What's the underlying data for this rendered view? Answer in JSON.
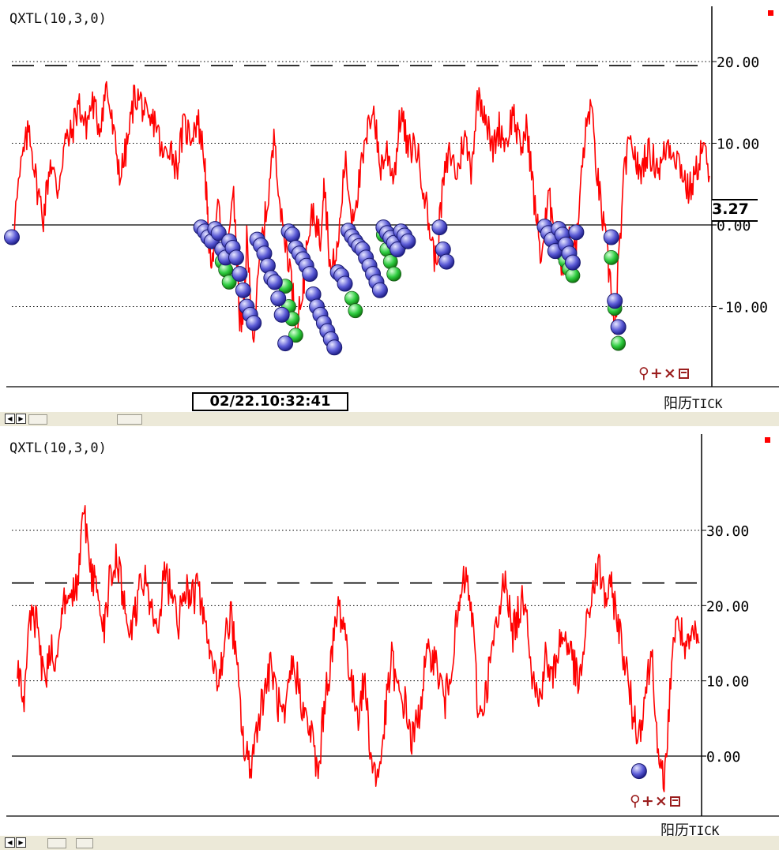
{
  "colors": {
    "line": "#ff0000",
    "signal_blue": "#5b5bd6",
    "signal_green": "#2ecc40",
    "axis": "#000000",
    "tools": "#9b1e1e"
  },
  "panes": [
    {
      "indicator_title": "QXTL(10,3,0)",
      "current_value": "3.27",
      "timestamp": "02/22.10:32:41",
      "calendar_label": "阳历",
      "period_label": "TICK",
      "tools": {
        "zoom": "zoom-icon",
        "add": "+",
        "close": "×",
        "window": "window-icon"
      }
    },
    {
      "indicator_title": "QXTL(10,3,0)",
      "calendar_label": "阳历",
      "period_label": "TICK",
      "tools": {
        "zoom": "zoom-icon",
        "add": "+",
        "close": "×",
        "window": "window-icon"
      }
    }
  ],
  "chart_data": [
    {
      "type": "line",
      "ylim": [
        -17,
        26
      ],
      "yticks": [
        "20.00",
        "10.00",
        "0.00",
        "-10.00"
      ],
      "ytick_values": [
        20,
        10,
        0,
        -10
      ],
      "grid": true,
      "dashed_level": 19.5,
      "zero_level": 0,
      "current_value": 3.27,
      "anchors": [
        [
          0,
          -1.5
        ],
        [
          3,
          8
        ],
        [
          5,
          12
        ],
        [
          7,
          5
        ],
        [
          9,
          1
        ],
        [
          11,
          8
        ],
        [
          13,
          4
        ],
        [
          15,
          10
        ],
        [
          17,
          11
        ],
        [
          19,
          15
        ],
        [
          21,
          12
        ],
        [
          23,
          15
        ],
        [
          25,
          12
        ],
        [
          27,
          17
        ],
        [
          29,
          11
        ],
        [
          31,
          6
        ],
        [
          33,
          10
        ],
        [
          35,
          16
        ],
        [
          37,
          15
        ],
        [
          39,
          12
        ],
        [
          41,
          13
        ],
        [
          43,
          8
        ],
        [
          45,
          10
        ],
        [
          47,
          7
        ],
        [
          49,
          12
        ],
        [
          51,
          11
        ],
        [
          53,
          13
        ],
        [
          55,
          8
        ],
        [
          56,
          -1
        ],
        [
          57,
          -4
        ],
        [
          59,
          2
        ],
        [
          61,
          -6
        ],
        [
          63,
          5
        ],
        [
          65,
          -11
        ],
        [
          66,
          -12
        ],
        [
          67,
          -2
        ],
        [
          69,
          -14
        ],
        [
          71,
          -3
        ],
        [
          73,
          3
        ],
        [
          75,
          11
        ],
        [
          77,
          0
        ],
        [
          79,
          -4
        ],
        [
          81,
          -12
        ],
        [
          83,
          -8
        ],
        [
          84,
          -4
        ],
        [
          86,
          2
        ],
        [
          88,
          -2
        ],
        [
          89,
          6
        ],
        [
          91,
          -6
        ],
        [
          93,
          -3
        ],
        [
          95,
          8
        ],
        [
          97,
          1
        ],
        [
          99,
          5
        ],
        [
          101,
          10
        ],
        [
          103,
          15
        ],
        [
          105,
          7
        ],
        [
          107,
          9
        ],
        [
          109,
          6
        ],
        [
          111,
          14
        ],
        [
          113,
          9
        ],
        [
          115,
          10
        ],
        [
          117,
          6
        ],
        [
          119,
          0
        ],
        [
          121,
          -5
        ],
        [
          123,
          5
        ],
        [
          125,
          9
        ],
        [
          127,
          6
        ],
        [
          129,
          11
        ],
        [
          131,
          7
        ],
        [
          133,
          16
        ],
        [
          135,
          14
        ],
        [
          137,
          9
        ],
        [
          139,
          12
        ],
        [
          141,
          10
        ],
        [
          143,
          14
        ],
        [
          145,
          9
        ],
        [
          147,
          12
        ],
        [
          149,
          3
        ],
        [
          151,
          -4
        ],
        [
          153,
          3
        ],
        [
          155,
          1
        ],
        [
          157,
          -5
        ],
        [
          159,
          -2
        ],
        [
          161,
          -3
        ],
        [
          163,
          9
        ],
        [
          165,
          15
        ],
        [
          167,
          6
        ],
        [
          169,
          -1
        ],
        [
          171,
          -8
        ],
        [
          172,
          -14
        ],
        [
          173,
          -5
        ],
        [
          175,
          8
        ],
        [
          177,
          10
        ],
        [
          179,
          6
        ],
        [
          181,
          9
        ],
        [
          183,
          8
        ],
        [
          185,
          7
        ],
        [
          187,
          10
        ],
        [
          189,
          9
        ],
        [
          191,
          7
        ],
        [
          193,
          4
        ],
        [
          195,
          6
        ],
        [
          197,
          10
        ],
        [
          199,
          6
        ]
      ],
      "signals_blue": [
        [
          0,
          -1.5
        ],
        [
          54,
          -0.3
        ],
        [
          55,
          -0.8
        ],
        [
          56,
          -1.5
        ],
        [
          57,
          -2
        ],
        [
          58,
          -0.5
        ],
        [
          59,
          -1
        ],
        [
          60,
          -3
        ],
        [
          61,
          -4
        ],
        [
          62,
          -2
        ],
        [
          63,
          -2.8
        ],
        [
          64,
          -4
        ],
        [
          65,
          -6
        ],
        [
          66,
          -8
        ],
        [
          67,
          -10
        ],
        [
          68,
          -11
        ],
        [
          69,
          -12
        ],
        [
          70,
          -1.8
        ],
        [
          71,
          -2.5
        ],
        [
          72,
          -3.5
        ],
        [
          73,
          -5
        ],
        [
          74,
          -6.5
        ],
        [
          75,
          -7
        ],
        [
          76,
          -9
        ],
        [
          77,
          -11
        ],
        [
          78,
          -14.5
        ],
        [
          79,
          -0.8
        ],
        [
          80,
          -1.2
        ],
        [
          81,
          -2.8
        ],
        [
          82,
          -3.5
        ],
        [
          83,
          -4.2
        ],
        [
          84,
          -5
        ],
        [
          85,
          -6
        ],
        [
          86,
          -8.5
        ],
        [
          87,
          -10
        ],
        [
          88,
          -11
        ],
        [
          89,
          -12
        ],
        [
          90,
          -13
        ],
        [
          91,
          -14
        ],
        [
          92,
          -15
        ],
        [
          93,
          -5.8
        ],
        [
          94,
          -6.2
        ],
        [
          95,
          -7.2
        ],
        [
          96,
          -0.7
        ],
        [
          97,
          -1.4
        ],
        [
          98,
          -2
        ],
        [
          99,
          -2.6
        ],
        [
          100,
          -3
        ],
        [
          101,
          -4
        ],
        [
          102,
          -5
        ],
        [
          103,
          -6
        ],
        [
          104,
          -7
        ],
        [
          105,
          -8
        ],
        [
          106,
          -0.3
        ],
        [
          107,
          -1
        ],
        [
          108,
          -1.6
        ],
        [
          109,
          -2.2
        ],
        [
          110,
          -3
        ],
        [
          111,
          -0.8
        ],
        [
          112,
          -1.3
        ],
        [
          113,
          -2
        ],
        [
          122,
          -0.3
        ],
        [
          123,
          -3
        ],
        [
          124,
          -4.5
        ],
        [
          152,
          -0.2
        ],
        [
          153,
          -1
        ],
        [
          154,
          -1.8
        ],
        [
          155,
          -3.2
        ],
        [
          156,
          -0.5
        ],
        [
          157,
          -1.2
        ],
        [
          158,
          -2.4
        ],
        [
          159,
          -3.5
        ],
        [
          160,
          -4.6
        ],
        [
          161,
          -0.9
        ],
        [
          171,
          -1.5
        ],
        [
          172,
          -9.3
        ],
        [
          173,
          -12.5
        ]
      ],
      "signals_green": [
        [
          60,
          -4.5
        ],
        [
          61,
          -5.5
        ],
        [
          62,
          -7
        ],
        [
          78,
          -7.5
        ],
        [
          79,
          -10
        ],
        [
          80,
          -11.5
        ],
        [
          81,
          -13.5
        ],
        [
          97,
          -9
        ],
        [
          98,
          -10.5
        ],
        [
          106,
          -1.2
        ],
        [
          107,
          -3
        ],
        [
          108,
          -4.5
        ],
        [
          109,
          -6
        ],
        [
          110,
          -1.7
        ],
        [
          111,
          -2.3
        ],
        [
          156,
          -2.5
        ],
        [
          157,
          -3.5
        ],
        [
          158,
          -4.4
        ],
        [
          159,
          -5.4
        ],
        [
          160,
          -6.2
        ],
        [
          171,
          -4
        ],
        [
          172,
          -10.2
        ],
        [
          173,
          -14.5
        ]
      ]
    },
    {
      "type": "line",
      "ylim": [
        -10,
        42
      ],
      "yticks": [
        "30.00",
        "20.00",
        "10.00",
        "0.00"
      ],
      "ytick_values": [
        30,
        20,
        10,
        0
      ],
      "grid": true,
      "dashed_level": 23,
      "zero_level": 0,
      "anchors": [
        [
          0,
          12
        ],
        [
          2,
          8
        ],
        [
          4,
          19
        ],
        [
          6,
          17
        ],
        [
          8,
          10
        ],
        [
          10,
          14
        ],
        [
          12,
          13
        ],
        [
          14,
          21
        ],
        [
          16,
          21
        ],
        [
          18,
          22
        ],
        [
          20,
          33
        ],
        [
          22,
          24
        ],
        [
          24,
          22
        ],
        [
          26,
          17
        ],
        [
          28,
          25
        ],
        [
          30,
          26
        ],
        [
          32,
          20
        ],
        [
          34,
          16
        ],
        [
          36,
          21
        ],
        [
          38,
          24
        ],
        [
          40,
          19
        ],
        [
          42,
          17
        ],
        [
          44,
          24
        ],
        [
          46,
          22
        ],
        [
          48,
          17
        ],
        [
          50,
          23
        ],
        [
          52,
          21
        ],
        [
          54,
          22
        ],
        [
          56,
          18
        ],
        [
          58,
          12
        ],
        [
          60,
          10
        ],
        [
          62,
          15
        ],
        [
          64,
          19
        ],
        [
          66,
          10
        ],
        [
          68,
          0
        ],
        [
          70,
          -1
        ],
        [
          72,
          5
        ],
        [
          74,
          9
        ],
        [
          76,
          12
        ],
        [
          78,
          7
        ],
        [
          80,
          4
        ],
        [
          82,
          12
        ],
        [
          84,
          10
        ],
        [
          86,
          5
        ],
        [
          88,
          3
        ],
        [
          90,
          -3
        ],
        [
          92,
          8
        ],
        [
          94,
          13
        ],
        [
          96,
          20
        ],
        [
          98,
          17
        ],
        [
          100,
          9
        ],
        [
          102,
          6
        ],
        [
          104,
          10
        ],
        [
          106,
          -1
        ],
        [
          108,
          -3
        ],
        [
          110,
          5
        ],
        [
          112,
          13
        ],
        [
          114,
          8
        ],
        [
          116,
          7
        ],
        [
          118,
          2
        ],
        [
          120,
          5
        ],
        [
          122,
          12
        ],
        [
          124,
          14
        ],
        [
          126,
          11
        ],
        [
          128,
          7
        ],
        [
          130,
          13
        ],
        [
          132,
          19
        ],
        [
          134,
          24
        ],
        [
          136,
          19
        ],
        [
          138,
          5
        ],
        [
          140,
          8
        ],
        [
          142,
          14
        ],
        [
          144,
          18
        ],
        [
          146,
          25
        ],
        [
          148,
          16
        ],
        [
          150,
          19
        ],
        [
          152,
          22
        ],
        [
          154,
          11
        ],
        [
          156,
          7
        ],
        [
          158,
          13
        ],
        [
          160,
          10
        ],
        [
          162,
          15
        ],
        [
          164,
          16
        ],
        [
          166,
          13
        ],
        [
          168,
          9
        ],
        [
          170,
          16
        ],
        [
          172,
          22
        ],
        [
          174,
          25
        ],
        [
          176,
          21
        ],
        [
          178,
          22
        ],
        [
          180,
          17
        ],
        [
          182,
          12
        ],
        [
          184,
          6
        ],
        [
          186,
          3
        ],
        [
          188,
          9
        ],
        [
          190,
          14
        ],
        [
          192,
          -3
        ],
        [
          194,
          -2
        ],
        [
          196,
          15
        ],
        [
          198,
          18
        ],
        [
          200,
          13
        ],
        [
          202,
          16
        ],
        [
          204,
          15
        ]
      ],
      "signals_blue": [
        [
          186,
          -2
        ]
      ]
    }
  ]
}
